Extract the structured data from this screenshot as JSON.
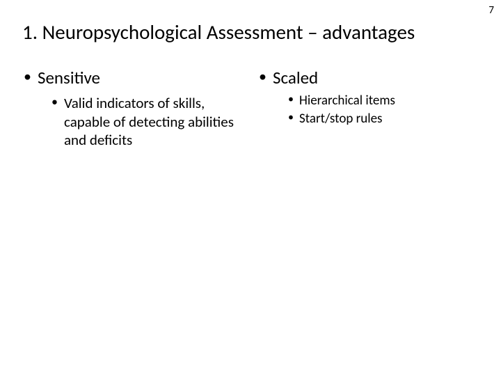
{
  "page_number": "7",
  "title": "1. Neuropsychological Assessment – advantages",
  "columns": {
    "left": {
      "heading": "Sensitive",
      "sub": [
        "Valid indicators of skills, capable of detecting abilities and deficits"
      ]
    },
    "right": {
      "heading": "Scaled",
      "sub": [
        "Hierarchical items",
        "Start/stop rules"
      ]
    }
  },
  "style": {
    "background_color": "#ffffff",
    "text_color": "#000000",
    "title_fontsize": 29,
    "level1_fontsize": 25,
    "level2_fontsize": 21,
    "level3_fontsize": 19,
    "font_family": "Calibri"
  }
}
